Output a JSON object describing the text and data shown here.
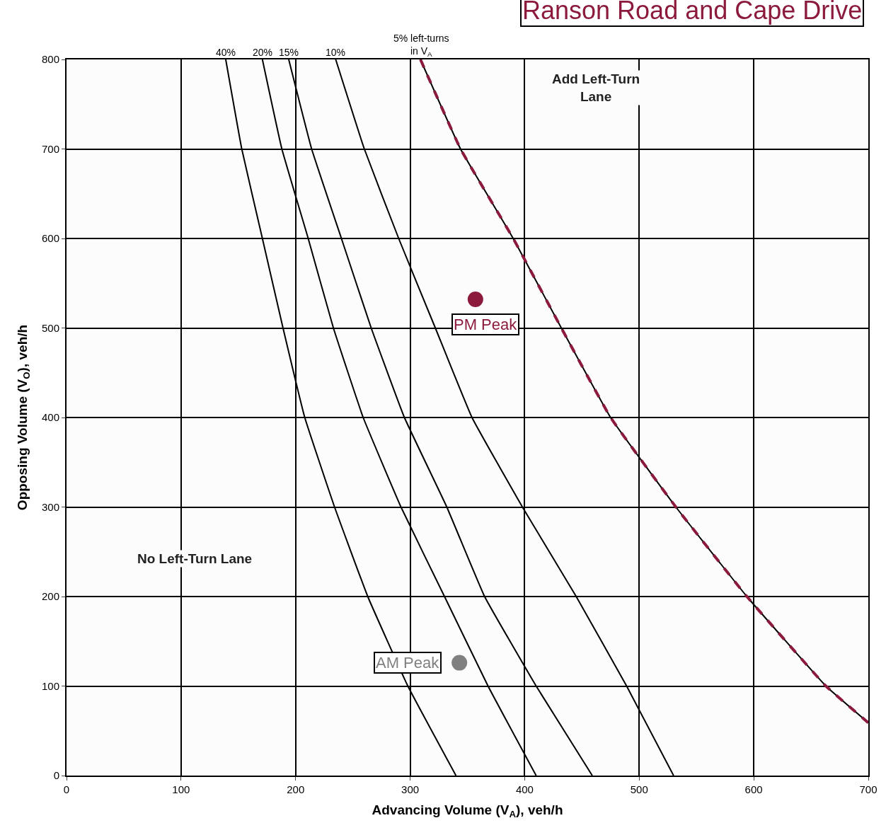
{
  "chart_data": {
    "type": "line",
    "title": "Ranson Road and Cape Drive",
    "xlabel": "Advancing Volume (V$_{A}$), veh/h",
    "ylabel": "Opposing Volume (V$_{O}$), veh/h",
    "xlim": [
      0,
      700
    ],
    "xticks": [
      0,
      100,
      200,
      300,
      400,
      500,
      600,
      700
    ],
    "ylim": [
      0,
      800
    ],
    "yticks": [
      0,
      100,
      200,
      300,
      400,
      500,
      600,
      700,
      800
    ],
    "grid": true,
    "series": [
      {
        "color": "#000000",
        "x": [
          139,
          153,
          171,
          189,
          208,
          234,
          263,
          298,
          340
        ],
        "values": [
          800,
          700,
          600,
          500,
          400,
          300,
          200,
          100,
          0
        ]
      },
      {
        "color": "#000000",
        "x": [
          171,
          188,
          211,
          233,
          259,
          292,
          330,
          368,
          410
        ],
        "values": [
          800,
          700,
          600,
          500,
          400,
          300,
          200,
          100,
          0
        ]
      },
      {
        "color": "#000000",
        "x": [
          194,
          214,
          240,
          266,
          295,
          332,
          365,
          410,
          459
        ],
        "values": [
          800,
          700,
          600,
          500,
          400,
          300,
          200,
          100,
          0
        ]
      },
      {
        "color": "#000000",
        "x": [
          235,
          260,
          290,
          322,
          354,
          398,
          445,
          489,
          530
        ],
        "values": [
          800,
          700,
          600,
          500,
          400,
          300,
          200,
          100,
          0
        ]
      },
      {
        "color": "#000000",
        "x": [
          309,
          344,
          390,
          432,
          475,
          532,
          594,
          663,
          700
        ],
        "values": [
          800,
          700,
          600,
          500,
          400,
          300,
          200,
          100,
          59
        ]
      },
      {
        "color": "#8b1a3c",
        "line_style": "dashed",
        "x": [
          309,
          344,
          390,
          432,
          475,
          532,
          594,
          663,
          700
        ],
        "values": [
          800,
          700,
          600,
          500,
          400,
          300,
          200,
          100,
          59
        ]
      },
      {
        "type": "scatter",
        "color": "#8b1a3c",
        "x": [
          357
        ],
        "values": [
          532
        ]
      },
      {
        "type": "scatter",
        "color": "#808080",
        "x": [
          343
        ],
        "values": [
          126
        ]
      }
    ],
    "annotations": [
      {
        "text": "40%",
        "x": 139,
        "y": 800
      },
      {
        "text": "20%",
        "x": 171,
        "y": 800
      },
      {
        "text": "15%",
        "x": 194,
        "y": 800
      },
      {
        "text": "10%",
        "x": 235,
        "y": 800
      },
      {
        "text": "5% left-turns\nin V$_{A}$",
        "x": 309,
        "y": 800
      },
      {
        "text": "PM Peak",
        "x": 357,
        "y": 532
      },
      {
        "text": "AM Peak",
        "x": 343,
        "y": 126
      },
      "Add Left-Turn\nLane",
      "No Left-Turn Lane"
    ]
  }
}
